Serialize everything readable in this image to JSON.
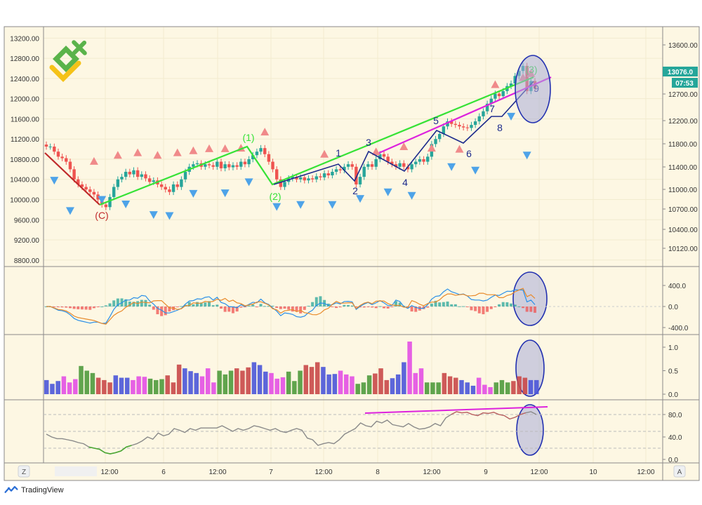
{
  "colors": {
    "background": "#fdf7e3",
    "grid": "#f2ebcf",
    "frame": "#8a8a8a",
    "bull": "#27a59a",
    "bear": "#ef5350",
    "vol_blue": "#4a55d8",
    "vol_magenta": "#e34fe3",
    "vol_green": "#4f9a3c",
    "vol_red": "#c94848",
    "price_badge": "#26a69a",
    "wave_red": "#c02a2a",
    "wave_green": "#36e236",
    "wave_navy": "#1c2a8c",
    "wave_magenta": "#dd22dd",
    "circle_fill": "#a9add8",
    "circle_stroke": "#2230b0",
    "macd_line": "#2a8fe8",
    "signal_line": "#e88a2a",
    "rsi_line": "#8a8a8a",
    "rsi_green": "#4aa832",
    "rsi_red": "#d84a4a",
    "up_arrow": "#f08a8a",
    "down_arrow": "#4ea3e8"
  },
  "header": {
    "price_badge": "13076.0",
    "countdown_badge": "07:53"
  },
  "footer": {
    "brand": "TradingView",
    "auto_button": "A",
    "zoom_button": "Z"
  },
  "chart_data": {
    "type": "candlestick",
    "title": "",
    "time_ticks": [
      "12:00",
      "6",
      "12:00",
      "7",
      "12:00",
      "8",
      "12:00",
      "9",
      "12:00",
      "10",
      "12:00"
    ],
    "price_axis_left": {
      "ylim": [
        8700,
        13400
      ],
      "ticks": [
        "13200.00",
        "12800.00",
        "12400.00",
        "12000.00",
        "11600.00",
        "11200.00",
        "10800.00",
        "10400.00",
        "10000.00",
        "9600.00",
        "9200.00",
        "8800.00"
      ]
    },
    "price_axis_right": {
      "ticks": [
        "13600.00",
        "13200.00",
        "12700.00",
        "12200.00",
        "11800.00",
        "11400.00",
        "11000.00",
        "10700.00",
        "10400.00",
        "10120.00"
      ]
    },
    "macd_axis": {
      "ticks": [
        "400.0",
        "0.0",
        "-400.0"
      ]
    },
    "volume_axis": {
      "ticks": [
        "1.0",
        "0.5",
        "0.0"
      ]
    },
    "rsi_axis": {
      "ticks": [
        "80.0",
        "40.0",
        "0.0"
      ]
    },
    "close_series": [
      11050,
      11050,
      10950,
      10850,
      10820,
      10750,
      10600,
      10400,
      10300,
      10250,
      10200,
      10150,
      10100,
      10000,
      9900,
      9850,
      10050,
      10250,
      10400,
      10450,
      10550,
      10500,
      10580,
      10450,
      10500,
      10420,
      10350,
      10380,
      10300,
      10250,
      10200,
      10150,
      10300,
      10250,
      10400,
      10550,
      10650,
      10700,
      10720,
      10650,
      10700,
      10680,
      10650,
      10750,
      10620,
      10700,
      10640,
      10680,
      10650,
      10750,
      10700,
      10800,
      10880,
      10950,
      11020,
      10900,
      10750,
      10600,
      10400,
      10250,
      10350,
      10420,
      10450,
      10400,
      10440,
      10380,
      10420,
      10400,
      10460,
      10440,
      10520,
      10480,
      10550,
      10600,
      10580,
      10650,
      10700,
      10650,
      10300,
      10450,
      10650,
      10700,
      10650,
      10800,
      10900,
      10850,
      10750,
      10700,
      10650,
      10720,
      10650,
      10600,
      10700,
      10750,
      10800,
      10750,
      10850,
      11100,
      11200,
      11300,
      11450,
      11550,
      11500,
      11480,
      11450,
      11430,
      11420,
      11480,
      11550,
      11650,
      11750,
      11900,
      12000,
      12100,
      12050,
      12150,
      12250,
      12300,
      12450,
      12550,
      12650,
      12150,
      12350,
      12200
    ],
    "up_signals": [
      10760,
      10880,
      10930,
      10880,
      10930,
      10970,
      11010,
      11010,
      11020,
      11340,
      10900,
      10950,
      11050,
      11020,
      11000,
      12280,
      12420,
      12500
    ],
    "down_signals": [
      10380,
      9780,
      10000,
      9910,
      9700,
      9680,
      10120,
      10130,
      10350,
      9860,
      9900,
      9900,
      10020,
      10150,
      10080,
      10650,
      10580,
      11650,
      10880
    ],
    "wave_labels": [
      "(C)",
      "(1)",
      "(2)",
      "1",
      "2",
      "3",
      "4",
      "5",
      "6",
      "7",
      "8",
      "9",
      "(3)"
    ],
    "volume_values": [
      0.3,
      0.22,
      0.28,
      0.38,
      0.25,
      0.32,
      0.6,
      0.5,
      0.45,
      0.35,
      0.3,
      0.25,
      0.4,
      0.35,
      0.35,
      0.3,
      0.38,
      0.37,
      0.33,
      0.3,
      0.32,
      0.4,
      0.25,
      0.63,
      0.55,
      0.49,
      0.45,
      0.38,
      0.55,
      0.25,
      0.5,
      0.42,
      0.5,
      0.55,
      0.5,
      0.57,
      0.68,
      0.62,
      0.48,
      0.45,
      0.33,
      0.36,
      0.48,
      0.28,
      0.5,
      0.62,
      0.58,
      0.68,
      0.58,
      0.42,
      0.43,
      0.5,
      0.42,
      0.38,
      0.22,
      0.25,
      0.4,
      0.44,
      0.55,
      0.3,
      0.34,
      0.42,
      0.68,
      1.12,
      0.45,
      0.55,
      0.25,
      0.25,
      0.25,
      0.45,
      0.38,
      0.35,
      0.3,
      0.25,
      0.18,
      0.35,
      0.2,
      0.15,
      0.25,
      0.3,
      0.25,
      0.28,
      0.38,
      0.35,
      0.3,
      0.3
    ],
    "rsi_values": [
      45,
      40,
      37,
      37,
      35,
      33,
      30,
      28,
      22,
      20,
      18,
      12,
      10,
      12,
      15,
      22,
      25,
      28,
      33,
      40,
      36,
      47,
      42,
      45,
      55,
      52,
      48,
      55,
      52,
      56,
      56,
      56,
      56,
      60,
      55,
      50,
      55,
      52,
      55,
      60,
      58,
      55,
      52,
      55,
      50,
      48,
      52,
      55,
      52,
      38,
      35,
      25,
      28,
      30,
      28,
      35,
      45,
      50,
      55,
      65,
      60,
      58,
      68,
      65,
      70,
      62,
      60,
      58,
      64,
      58,
      54,
      55,
      58,
      64,
      60,
      74,
      80,
      85,
      83,
      84,
      80,
      78,
      83,
      82,
      84,
      80,
      78,
      72,
      75,
      80,
      83,
      85,
      80
    ]
  }
}
